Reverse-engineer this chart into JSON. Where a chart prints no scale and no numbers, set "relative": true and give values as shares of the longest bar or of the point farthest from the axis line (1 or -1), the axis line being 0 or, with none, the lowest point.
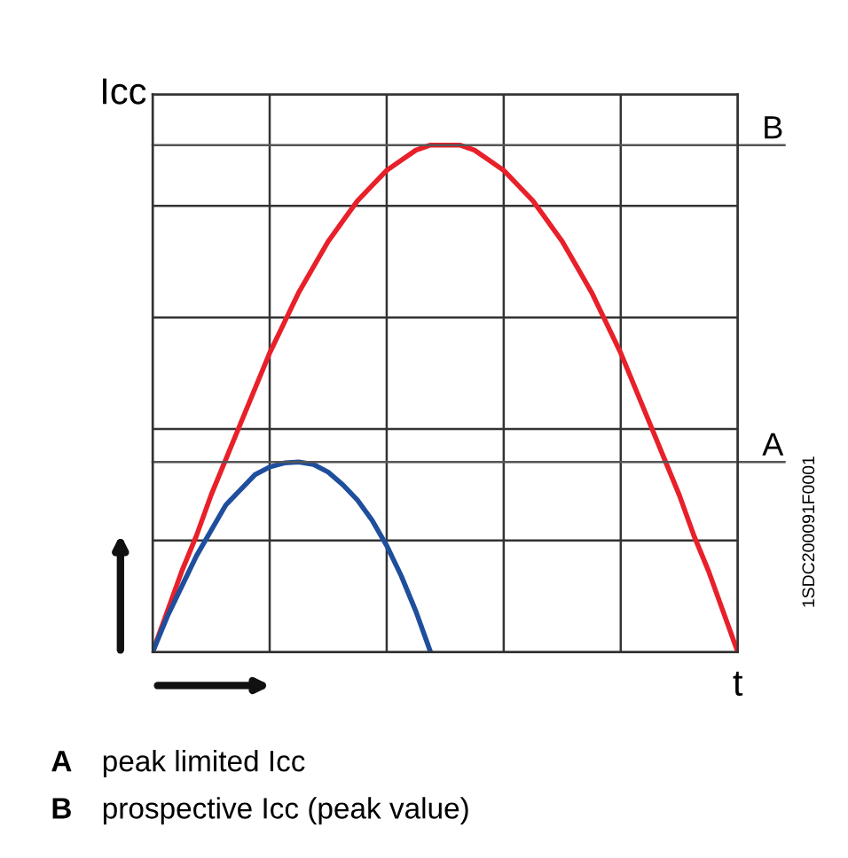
{
  "chart_data": {
    "type": "line",
    "relative": true,
    "ylabel": "Icc",
    "xlabel": "t",
    "categories": [
      null,
      null,
      null,
      null,
      null,
      null,
      null,
      null,
      null,
      null,
      null,
      null,
      null,
      null,
      null,
      null,
      null,
      null,
      null,
      null,
      null,
      null,
      null,
      null,
      null,
      null,
      null,
      null,
      null,
      null,
      null,
      null,
      null,
      null,
      null,
      null,
      null,
      null,
      null,
      null,
      null
    ],
    "series": [
      {
        "color": "#e8202a",
        "values": [
          0,
          0.08,
          0.16,
          0.23,
          0.31,
          0.38,
          0.45,
          0.52,
          0.59,
          0.65,
          0.71,
          0.76,
          0.81,
          0.85,
          0.89,
          0.92,
          0.95,
          0.97,
          0.99,
          1.0,
          1.0,
          1.0,
          0.99,
          0.97,
          0.95,
          0.92,
          0.89,
          0.85,
          0.81,
          0.76,
          0.71,
          0.65,
          0.59,
          0.52,
          0.45,
          0.38,
          0.31,
          0.23,
          0.16,
          0.08,
          0
        ]
      },
      {
        "color": "#1f4e9c",
        "values": [
          0,
          0.07,
          0.13,
          0.19,
          0.24,
          0.29,
          0.32,
          0.35,
          0.365,
          0.373,
          0.375,
          0.37,
          0.355,
          0.33,
          0.3,
          0.26,
          0.21,
          0.15,
          0.08,
          0,
          null,
          null,
          null,
          null,
          null,
          null,
          null,
          null,
          null,
          null,
          null,
          null,
          null,
          null,
          null,
          null,
          null,
          null,
          null,
          null,
          null
        ]
      }
    ],
    "ref_lines": [
      {
        "axis": "y",
        "value": 1.0,
        "label": "B",
        "color": "#555555"
      },
      {
        "axis": "y",
        "value": 0.375,
        "label": "A",
        "color": "#555555"
      }
    ],
    "grid": true,
    "marker": "none",
    "line_style": "solid",
    "annotations": [
      "A",
      "peak limited Icc",
      "B",
      "prospective Icc (peak value)",
      "1SDC200091F0001"
    ]
  }
}
